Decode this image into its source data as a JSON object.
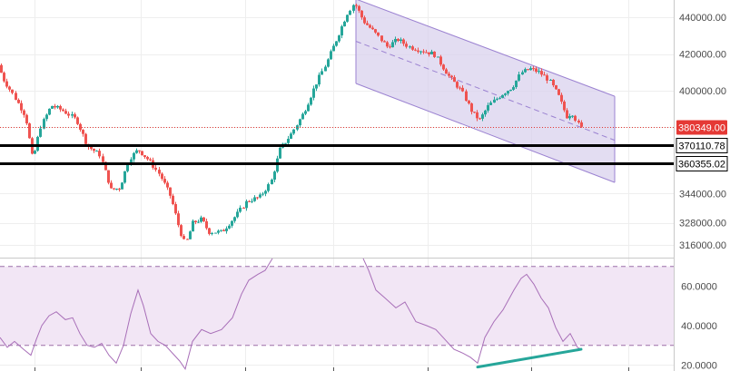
{
  "chart_data": [
    {
      "type": "candlestick",
      "title": "",
      "ylim": [
        309000,
        449500
      ],
      "grid": true,
      "y_ticks": [
        316000,
        328000,
        344000,
        360000,
        380000,
        400000,
        420000,
        440000
      ],
      "y_tick_labels": [
        "316000.00",
        "328000.00",
        "344000.00",
        "360000.00",
        "380000.00",
        "400000.00",
        "420000.00",
        "440000.00"
      ],
      "price_path": [
        [
          0,
          414000
        ],
        [
          6,
          406000
        ],
        [
          16,
          398000
        ],
        [
          30,
          386000
        ],
        [
          38,
          362000
        ],
        [
          46,
          380000
        ],
        [
          58,
          392000
        ],
        [
          72,
          389000
        ],
        [
          86,
          384000
        ],
        [
          98,
          370000
        ],
        [
          112,
          365000
        ],
        [
          124,
          346000
        ],
        [
          134,
          347000
        ],
        [
          144,
          363000
        ],
        [
          154,
          368000
        ],
        [
          166,
          362000
        ],
        [
          178,
          354000
        ],
        [
          190,
          342000
        ],
        [
          200,
          324000
        ],
        [
          206,
          316000
        ],
        [
          214,
          328000
        ],
        [
          224,
          330000
        ],
        [
          232,
          323000
        ],
        [
          246,
          323000
        ],
        [
          262,
          332000
        ],
        [
          274,
          340000
        ],
        [
          288,
          342000
        ],
        [
          300,
          350000
        ],
        [
          310,
          368000
        ],
        [
          322,
          376000
        ],
        [
          336,
          388000
        ],
        [
          350,
          404000
        ],
        [
          362,
          416000
        ],
        [
          374,
          430000
        ],
        [
          384,
          442000
        ],
        [
          392,
          448000
        ],
        [
          402,
          438000
        ],
        [
          414,
          432000
        ],
        [
          428,
          424000
        ],
        [
          440,
          428000
        ],
        [
          452,
          424000
        ],
        [
          466,
          422000
        ],
        [
          480,
          420000
        ],
        [
          496,
          408000
        ],
        [
          510,
          400000
        ],
        [
          522,
          388000
        ],
        [
          530,
          384000
        ],
        [
          540,
          392000
        ],
        [
          554,
          398000
        ],
        [
          566,
          402000
        ],
        [
          576,
          410000
        ],
        [
          586,
          412000
        ],
        [
          596,
          410000
        ],
        [
          606,
          406000
        ],
        [
          616,
          398000
        ],
        [
          626,
          386000
        ],
        [
          632,
          388000
        ],
        [
          640,
          380349
        ]
      ],
      "channel": {
        "upper": [
          [
            392,
            450000
          ],
          [
            677,
            397000
          ]
        ],
        "middle": [
          [
            392,
            427000
          ],
          [
            677,
            373000
          ]
        ],
        "lower": [
          [
            392,
            404000
          ],
          [
            677,
            350000
          ]
        ],
        "fill_color": "#d9d2ee",
        "line_color": "#9b82d1"
      },
      "levels": [
        {
          "price": 380349,
          "label": "380349.00",
          "style": "dotted",
          "color": "#e53935"
        },
        {
          "price": 370110.78,
          "label": "370110.78",
          "style": "solid",
          "color": "#000000"
        },
        {
          "price": 360355.02,
          "label": "360355.02",
          "style": "solid",
          "color": "#000000"
        }
      ],
      "colors": {
        "up": "#26a69a",
        "down": "#ef5350"
      }
    },
    {
      "type": "line",
      "title": "",
      "ylim": [
        17,
        74
      ],
      "y_ticks": [
        20,
        40,
        60
      ],
      "y_tick_labels": [
        "20.0000",
        "40.0000",
        "60.0000"
      ],
      "band": {
        "upper": 70,
        "lower": 30,
        "fill_color": "#f2e6f5",
        "line_color": "#9c6fa8"
      },
      "series": [
        {
          "values": [
            [
              0,
              34
            ],
            [
              8,
              29
            ],
            [
              16,
              32
            ],
            [
              26,
              28
            ],
            [
              34,
              25
            ],
            [
              40,
              33
            ],
            [
              46,
              40
            ],
            [
              54,
              45
            ],
            [
              62,
              47
            ],
            [
              72,
              43
            ],
            [
              80,
              44
            ],
            [
              88,
              36
            ],
            [
              96,
              30
            ],
            [
              104,
              29
            ],
            [
              112,
              31
            ],
            [
              120,
              25
            ],
            [
              128,
              21
            ],
            [
              136,
              30
            ],
            [
              144,
              46
            ],
            [
              152,
              58
            ],
            [
              158,
              50
            ],
            [
              166,
              36
            ],
            [
              174,
              32
            ],
            [
              182,
              30
            ],
            [
              190,
              26
            ],
            [
              198,
              22
            ],
            [
              204,
              18
            ],
            [
              212,
              32
            ],
            [
              222,
              38
            ],
            [
              232,
              36
            ],
            [
              244,
              38
            ],
            [
              256,
              44
            ],
            [
              266,
              56
            ],
            [
              274,
              63
            ],
            [
              284,
              66
            ],
            [
              292,
              68
            ],
            [
              300,
              74
            ]
          ],
          "color": "#a86fb8"
        },
        {
          "values": [
            [
              400,
              74
            ],
            [
              406,
              68
            ],
            [
              414,
              58
            ],
            [
              424,
              54
            ],
            [
              436,
              49
            ],
            [
              446,
              52
            ],
            [
              458,
              42
            ],
            [
              470,
              40
            ],
            [
              480,
              38
            ],
            [
              490,
              33
            ],
            [
              500,
              28
            ],
            [
              510,
              26
            ],
            [
              518,
              24
            ],
            [
              526,
              21
            ],
            [
              534,
              34
            ],
            [
              544,
              42
            ],
            [
              554,
              48
            ],
            [
              566,
              58
            ],
            [
              574,
              64
            ],
            [
              580,
              66
            ],
            [
              588,
              61
            ],
            [
              596,
              54
            ],
            [
              604,
              49
            ],
            [
              612,
              39
            ],
            [
              620,
              32
            ],
            [
              628,
              36
            ],
            [
              636,
              29
            ],
            [
              640,
              28
            ]
          ],
          "color": "#a86fb8"
        }
      ],
      "divergence_line": {
        "from": [
          526,
          19
        ],
        "to": [
          640,
          28
        ],
        "color": "#26a69a"
      }
    }
  ]
}
